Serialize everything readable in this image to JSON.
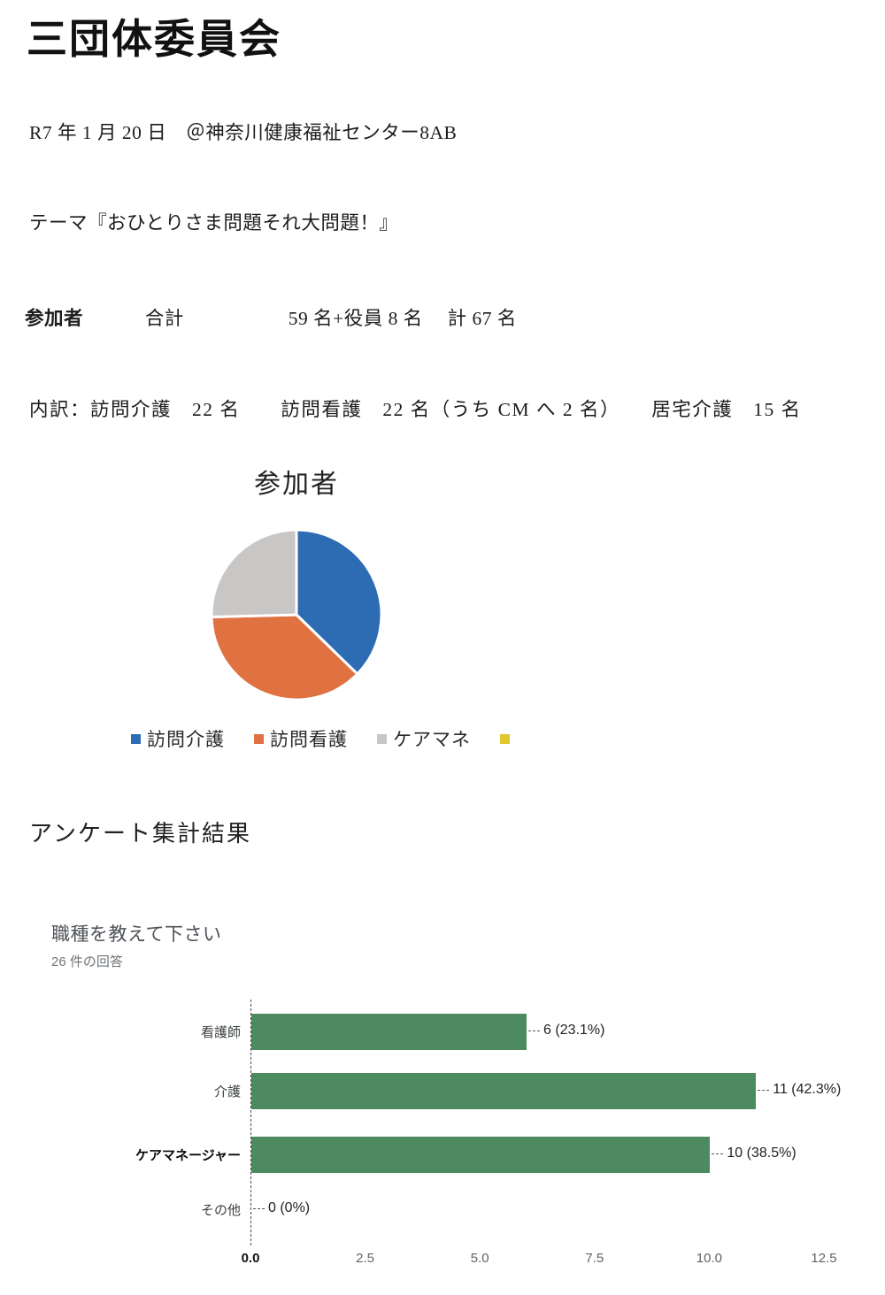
{
  "document": {
    "title": "三団体委員会",
    "date_venue": "R7 年 1 月 20 日　＠神奈川健康福祉センター8AB",
    "theme": "テーマ『おひとりさま問題それ大問題！』",
    "participants": {
      "label": "参加者",
      "total_label": "合計",
      "count": "59 名+役員 8 名",
      "grand_total": "計 67 名"
    },
    "breakdown": "内訳：訪問介護　22 名　　訪問看護　22 名（うち CM へ 2 名）　　居宅介護　15 名",
    "survey_heading": "アンケート集計結果"
  },
  "chart_data": [
    {
      "type": "pie",
      "title": "参加者",
      "labels": [
        "訪問介護",
        "訪問看護",
        "ケアマネ",
        ""
      ],
      "values": [
        22,
        22,
        15,
        0
      ],
      "colors": [
        "#2d6cb3",
        "#e07140",
        "#c9c7c5",
        "#e2c72e"
      ],
      "legend_position": "bottom",
      "start_angle_deg": -90,
      "direction": "clockwise"
    },
    {
      "type": "bar",
      "orientation": "horizontal",
      "title": "職種を教えて下さい",
      "subtitle": "26 件の回答",
      "categories": [
        "看護師",
        "介護",
        "ケアマネージャー",
        "その他"
      ],
      "values": [
        6,
        11,
        10,
        0
      ],
      "value_labels": [
        "6 (23.1%)",
        "11 (42.3%)",
        "10 (38.5%)",
        "0 (0%)"
      ],
      "xlim": [
        0,
        12.5
      ],
      "xticks": [
        "0.0",
        "2.5",
        "5.0",
        "7.5",
        "10.0",
        "12.5"
      ],
      "bar_color": "#4d8a5f",
      "grid": false
    }
  ]
}
